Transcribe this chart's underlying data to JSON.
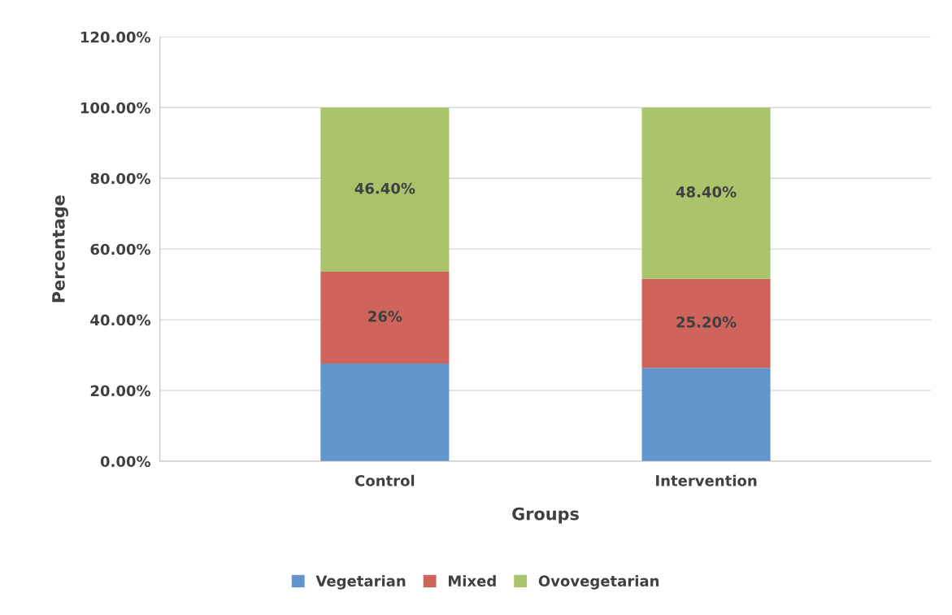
{
  "chart_data": {
    "type": "bar",
    "stacked": true,
    "xlabel": "Groups",
    "ylabel": "Percentage",
    "categories": [
      "Control",
      "Intervention"
    ],
    "series": [
      {
        "name": "Vegetarian",
        "color": "#6096cc",
        "values": [
          27.6,
          26.4
        ],
        "value_labels": [
          null,
          null
        ]
      },
      {
        "name": "Mixed",
        "color": "#cf645d",
        "values": [
          26,
          25.2
        ],
        "value_labels": [
          "26%",
          "25.20%"
        ]
      },
      {
        "name": "Ovovegetarian",
        "color": "#a9c46a",
        "values": [
          46.4,
          48.4
        ],
        "value_labels": [
          "46.40%",
          "48.40%"
        ]
      }
    ],
    "ylim": [
      0,
      120
    ],
    "yticks": [
      {
        "value": 0,
        "label": "0.00%"
      },
      {
        "value": 20,
        "label": "20.00%"
      },
      {
        "value": 40,
        "label": "40.00%"
      },
      {
        "value": 60,
        "label": "60.00%"
      },
      {
        "value": 80,
        "label": "80.00%"
      },
      {
        "value": 100,
        "label": "100.00%"
      },
      {
        "value": 120,
        "label": "120.00%"
      }
    ],
    "grid": "y",
    "legend": "bottom"
  }
}
